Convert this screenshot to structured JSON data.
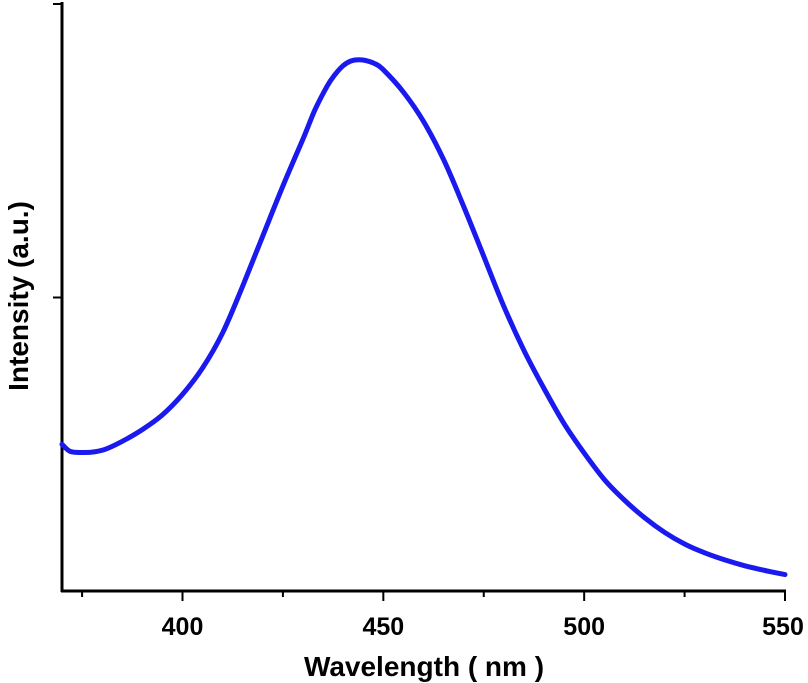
{
  "chart_data": {
    "type": "line",
    "title": "",
    "xlabel": "Wavelength ( nm )",
    "ylabel": "Intensity (a.u.)",
    "xlim": [
      370,
      550
    ],
    "ylim": [
      0,
      1
    ],
    "x_ticks": [
      400,
      450,
      500,
      550
    ],
    "x_tick_labels": [
      "400",
      "450",
      "500",
      "550"
    ],
    "y_ticks": [
      0.5,
      1.0
    ],
    "y_tick_labels": [
      "",
      ""
    ],
    "grid": false,
    "legend": "none",
    "series": [
      {
        "color": "#1a1aee",
        "x": [
          370,
          372,
          375,
          378,
          381,
          385,
          390,
          395,
          400,
          405,
          410,
          415,
          420,
          425,
          430,
          433,
          436,
          438,
          440,
          442,
          444,
          446,
          448,
          450,
          455,
          460,
          465,
          470,
          475,
          480,
          485,
          490,
          495,
          500,
          505,
          510,
          515,
          520,
          525,
          530,
          535,
          540,
          545,
          550
        ],
        "y": [
          0.25,
          0.238,
          0.236,
          0.237,
          0.242,
          0.255,
          0.275,
          0.3,
          0.335,
          0.38,
          0.44,
          0.52,
          0.605,
          0.69,
          0.77,
          0.82,
          0.86,
          0.88,
          0.895,
          0.903,
          0.905,
          0.903,
          0.898,
          0.888,
          0.85,
          0.8,
          0.735,
          0.655,
          0.57,
          0.485,
          0.41,
          0.345,
          0.285,
          0.235,
          0.19,
          0.155,
          0.125,
          0.1,
          0.08,
          0.065,
          0.053,
          0.043,
          0.035,
          0.028
        ]
      }
    ]
  }
}
